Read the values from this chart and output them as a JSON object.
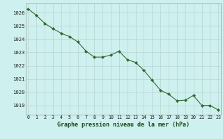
{
  "x": [
    0,
    1,
    2,
    3,
    4,
    5,
    6,
    7,
    8,
    9,
    10,
    11,
    12,
    13,
    14,
    15,
    16,
    17,
    18,
    19,
    20,
    21,
    22,
    23
  ],
  "y": [
    1026.3,
    1025.8,
    1025.2,
    1024.8,
    1024.45,
    1024.2,
    1023.8,
    1023.1,
    1022.65,
    1022.65,
    1022.8,
    1023.1,
    1022.45,
    1022.25,
    1021.65,
    1020.9,
    1020.15,
    1019.85,
    1019.35,
    1019.4,
    1019.75,
    1019.0,
    1019.0,
    1018.65
  ],
  "line_color": "#2d6a2d",
  "marker_color": "#2d6a2d",
  "bg_color": "#cef0ee",
  "grid_color": "#b8d4d0",
  "xlabel": "Graphe pression niveau de la mer (hPa)",
  "xlabel_color": "#1a4a1a",
  "ylabel_ticks": [
    1019,
    1020,
    1021,
    1022,
    1023,
    1024,
    1025,
    1026
  ],
  "xtick_labels": [
    "0",
    "1",
    "2",
    "3",
    "4",
    "5",
    "6",
    "7",
    "8",
    "9",
    "10",
    "11",
    "12",
    "13",
    "14",
    "15",
    "16",
    "17",
    "18",
    "19",
    "20",
    "21",
    "22",
    "23"
  ],
  "ylim": [
    1018.3,
    1026.7
  ],
  "xlim": [
    -0.3,
    23.3
  ],
  "label_bg_color": "#cef0ee"
}
